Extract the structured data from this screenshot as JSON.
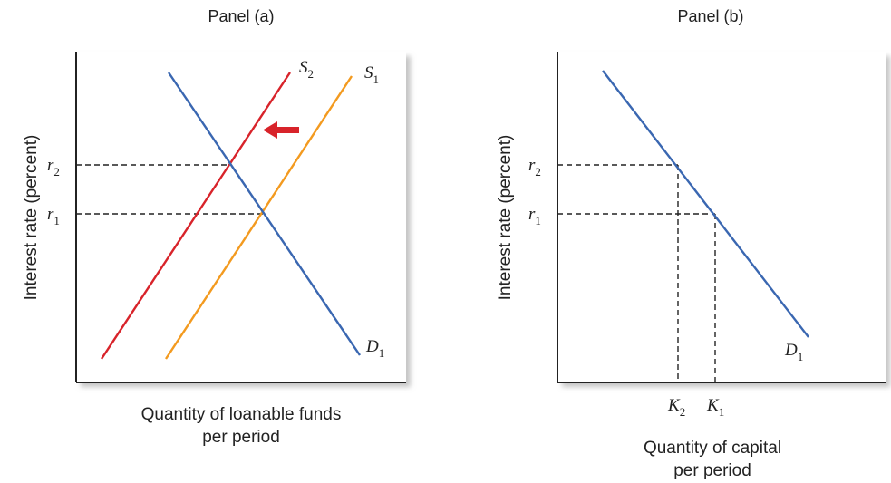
{
  "colors": {
    "demand": "#3a67b1",
    "supply_original": "#f39a1f",
    "supply_shifted": "#d8232a",
    "arrow": "#d8232a",
    "axis": "#222222",
    "panel_shadow": "#bdbdbd"
  },
  "chart_data": [
    {
      "type": "line",
      "title": "Panel (a)",
      "xlabel": "Quantity of loanable funds per period",
      "xlabel_lines": [
        "Quantity of loanable funds",
        "per period"
      ],
      "ylabel": "Interest rate (percent)",
      "y_ticks": [
        {
          "main": "r",
          "sub": "2"
        },
        {
          "main": "r",
          "sub": "1"
        }
      ],
      "series": [
        {
          "name": "S2",
          "label_main": "S",
          "label_sub": "2",
          "role": "supply_shifted"
        },
        {
          "name": "S1",
          "label_main": "S",
          "label_sub": "1",
          "role": "supply_original"
        },
        {
          "name": "D1",
          "label_main": "D",
          "label_sub": "1",
          "role": "demand"
        }
      ],
      "annotation": "arrow indicating leftward shift of supply from S1 to S2"
    },
    {
      "type": "line",
      "title": "Panel (b)",
      "xlabel": "Quantity of capital per period",
      "xlabel_lines": [
        "Quantity of capital",
        "per period"
      ],
      "ylabel": "Interest rate (percent)",
      "y_ticks": [
        {
          "main": "r",
          "sub": "2"
        },
        {
          "main": "r",
          "sub": "1"
        }
      ],
      "x_ticks": [
        {
          "main": "K",
          "sub": "2"
        },
        {
          "main": "K",
          "sub": "1"
        }
      ],
      "series": [
        {
          "name": "D1",
          "label_main": "D",
          "label_sub": "1",
          "role": "demand"
        }
      ]
    }
  ]
}
